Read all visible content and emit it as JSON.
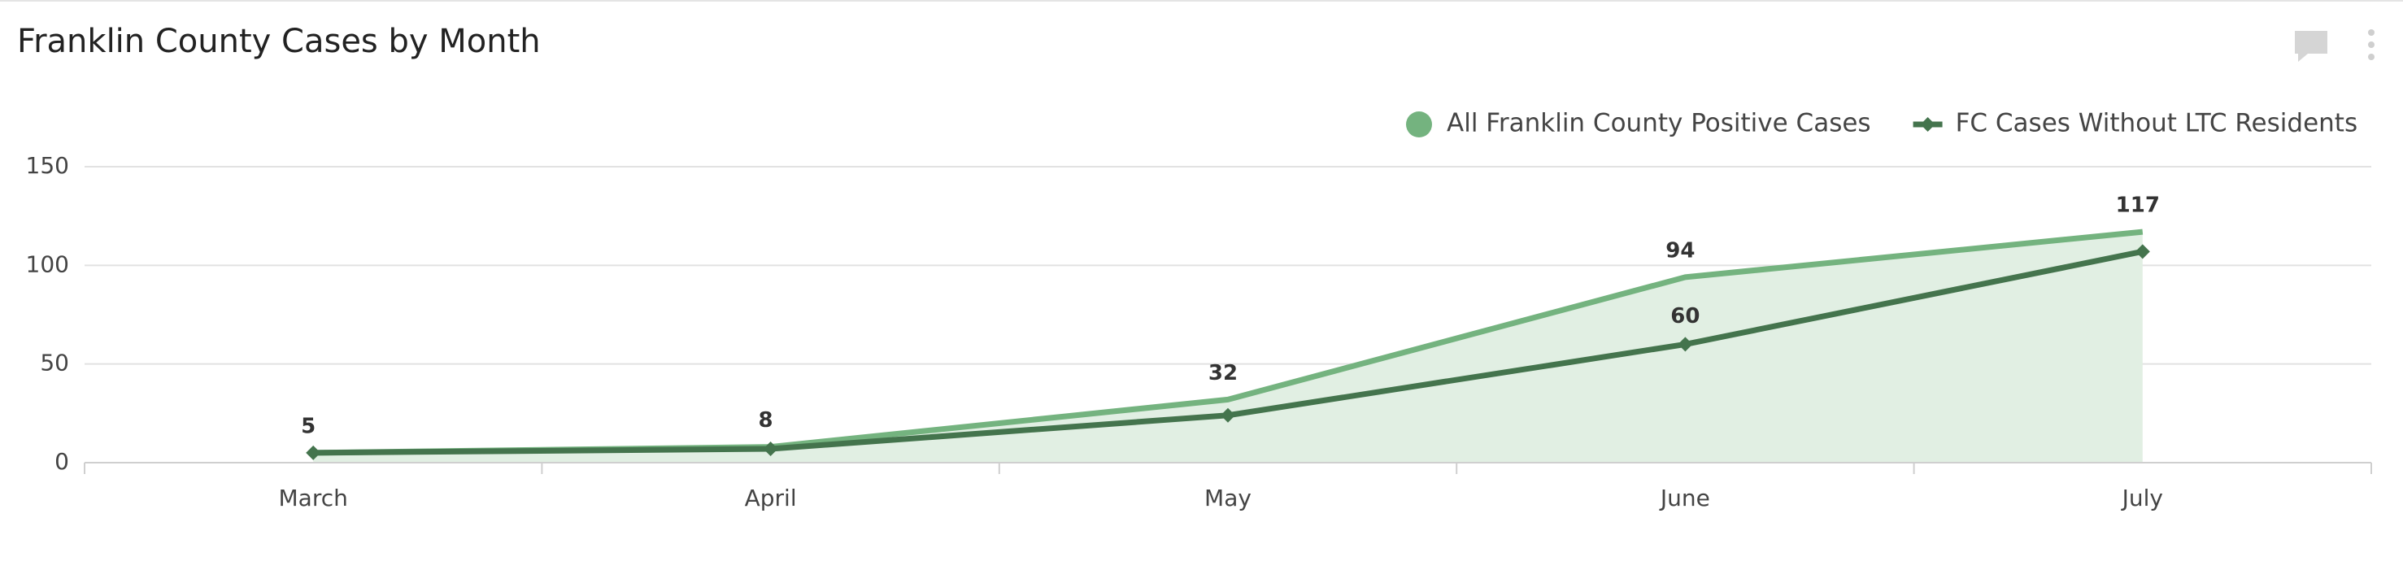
{
  "chart_data": {
    "type": "line",
    "title": "Franklin County Cases by Month",
    "categories": [
      "March",
      "April",
      "May",
      "June",
      "July"
    ],
    "series": [
      {
        "name": "All Franklin County Positive Cases",
        "color": "#74b37f",
        "area_color": "#e1efe3",
        "values": [
          5,
          8,
          32,
          94,
          117
        ]
      },
      {
        "name": "FC Cases Without LTC Residents",
        "color": "#44744d",
        "values": [
          5,
          7,
          24,
          60,
          107
        ],
        "value_labels": [
          null,
          null,
          null,
          "60",
          null
        ]
      }
    ],
    "ylim": [
      0,
      150
    ],
    "yticks": [
      0,
      50,
      100,
      150
    ],
    "grid": true,
    "legend": "top-right"
  }
}
